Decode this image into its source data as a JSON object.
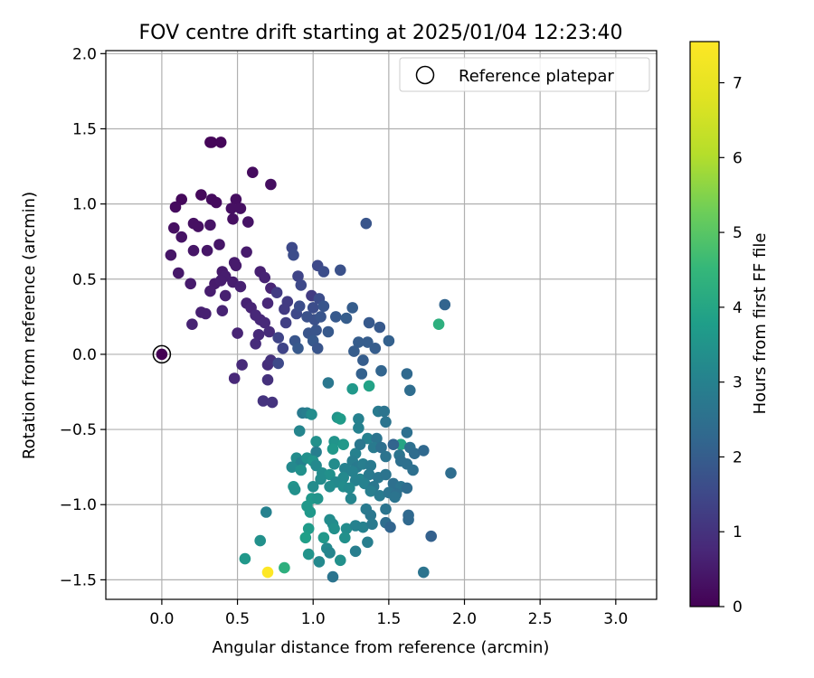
{
  "chart_data": {
    "type": "scatter",
    "title": "FOV centre drift starting at 2025/01/04 12:23:40",
    "xlabel": "Angular distance from reference (arcmin)",
    "ylabel": "Rotation from reference (arcmin)",
    "xlim": [
      -0.37,
      3.27
    ],
    "ylim": [
      -1.63,
      2.02
    ],
    "x_ticks": [
      0.0,
      0.5,
      1.0,
      1.5,
      2.0,
      2.5,
      3.0
    ],
    "x_tick_labels": [
      "0.0",
      "0.5",
      "1.0",
      "1.5",
      "2.0",
      "2.5",
      "3.0"
    ],
    "y_ticks": [
      -1.5,
      -1.0,
      -0.5,
      0.0,
      0.5,
      1.0,
      1.5,
      2.0
    ],
    "y_tick_labels": [
      "−1.5",
      "−1.0",
      "−0.5",
      "0.0",
      "0.5",
      "1.0",
      "1.5",
      "2.0"
    ],
    "grid": true,
    "legend": {
      "placement": "upper right",
      "entries": [
        "Reference platepar"
      ]
    },
    "reference": {
      "x": 0.0,
      "y": 0.0
    },
    "colorbar": {
      "label": "Hours from first FF file",
      "range": [
        0,
        7.55
      ],
      "ticks": [
        0,
        1,
        2,
        3,
        4,
        5,
        6,
        7
      ],
      "tick_labels": [
        "0",
        "1",
        "2",
        "3",
        "4",
        "5",
        "6",
        "7"
      ],
      "colormap": "viridis"
    },
    "points": [
      [
        0.0,
        0.0,
        0.0
      ],
      [
        0.32,
        1.41,
        0.1
      ],
      [
        0.33,
        1.41,
        0.1
      ],
      [
        0.39,
        1.41,
        0.1
      ],
      [
        0.6,
        1.21,
        0.2
      ],
      [
        0.72,
        1.13,
        0.25
      ],
      [
        0.13,
        1.03,
        0.15
      ],
      [
        0.26,
        1.06,
        0.15
      ],
      [
        0.33,
        1.03,
        0.2
      ],
      [
        0.36,
        1.01,
        0.2
      ],
      [
        0.49,
        1.03,
        0.25
      ],
      [
        0.09,
        0.98,
        0.2
      ],
      [
        0.46,
        0.97,
        0.3
      ],
      [
        0.52,
        0.97,
        0.3
      ],
      [
        0.21,
        0.87,
        0.3
      ],
      [
        0.24,
        0.85,
        0.3
      ],
      [
        0.32,
        0.86,
        0.35
      ],
      [
        0.47,
        0.9,
        0.3
      ],
      [
        0.57,
        0.88,
        0.35
      ],
      [
        0.08,
        0.84,
        0.3
      ],
      [
        0.13,
        0.78,
        0.35
      ],
      [
        0.38,
        0.73,
        0.4
      ],
      [
        0.21,
        0.69,
        0.4
      ],
      [
        0.3,
        0.69,
        0.4
      ],
      [
        0.06,
        0.66,
        0.4
      ],
      [
        0.56,
        0.68,
        0.5
      ],
      [
        0.48,
        0.61,
        0.5
      ],
      [
        0.49,
        0.59,
        0.5
      ],
      [
        0.11,
        0.54,
        0.45
      ],
      [
        0.4,
        0.55,
        0.5
      ],
      [
        0.42,
        0.52,
        0.55
      ],
      [
        0.65,
        0.55,
        0.6
      ],
      [
        0.68,
        0.51,
        0.65
      ],
      [
        0.19,
        0.47,
        0.5
      ],
      [
        0.35,
        0.47,
        0.5
      ],
      [
        0.39,
        0.49,
        0.55
      ],
      [
        0.47,
        0.48,
        0.55
      ],
      [
        0.52,
        0.45,
        0.6
      ],
      [
        0.72,
        0.44,
        0.7
      ],
      [
        0.32,
        0.42,
        0.55
      ],
      [
        0.42,
        0.39,
        0.6
      ],
      [
        0.56,
        0.34,
        0.65
      ],
      [
        0.59,
        0.31,
        0.7
      ],
      [
        0.7,
        0.34,
        0.75
      ],
      [
        0.26,
        0.28,
        0.6
      ],
      [
        0.29,
        0.27,
        0.6
      ],
      [
        0.4,
        0.29,
        0.65
      ],
      [
        0.2,
        0.2,
        0.65
      ],
      [
        0.62,
        0.26,
        0.75
      ],
      [
        0.65,
        0.23,
        0.75
      ],
      [
        0.68,
        0.21,
        0.8
      ],
      [
        0.5,
        0.14,
        0.7
      ],
      [
        0.64,
        0.13,
        0.8
      ],
      [
        0.71,
        0.15,
        0.85
      ],
      [
        0.62,
        0.07,
        0.85
      ],
      [
        0.48,
        -0.16,
        0.75
      ],
      [
        0.53,
        -0.07,
        0.8
      ],
      [
        0.7,
        -0.07,
        0.9
      ],
      [
        0.72,
        -0.04,
        0.95
      ],
      [
        0.7,
        -0.17,
        0.95
      ],
      [
        0.67,
        -0.31,
        1.0
      ],
      [
        0.73,
        -0.32,
        1.0
      ],
      [
        0.76,
        0.41,
        1.2
      ],
      [
        0.83,
        0.35,
        1.2
      ],
      [
        0.81,
        0.3,
        1.2
      ],
      [
        0.82,
        0.21,
        1.3
      ],
      [
        0.77,
        0.11,
        1.4
      ],
      [
        0.8,
        0.04,
        1.4
      ],
      [
        0.77,
        -0.06,
        1.5
      ],
      [
        0.86,
        0.71,
        1.5
      ],
      [
        0.87,
        0.66,
        1.6
      ],
      [
        0.9,
        0.52,
        1.4
      ],
      [
        0.92,
        0.46,
        1.5
      ],
      [
        0.99,
        0.39,
        1.2
      ],
      [
        1.03,
        0.59,
        1.5
      ],
      [
        1.07,
        0.55,
        1.6
      ],
      [
        1.18,
        0.56,
        1.7
      ],
      [
        0.89,
        0.27,
        1.5
      ],
      [
        0.91,
        0.32,
        1.6
      ],
      [
        0.96,
        0.25,
        1.7
      ],
      [
        1.0,
        0.31,
        1.6
      ],
      [
        1.04,
        0.37,
        1.6
      ],
      [
        1.07,
        0.32,
        1.8
      ],
      [
        1.01,
        0.23,
        1.7
      ],
      [
        1.05,
        0.25,
        1.8
      ],
      [
        0.97,
        0.14,
        1.8
      ],
      [
        1.02,
        0.16,
        1.8
      ],
      [
        0.88,
        0.09,
        1.8
      ],
      [
        0.9,
        0.04,
        1.9
      ],
      [
        1.0,
        0.09,
        1.9
      ],
      [
        1.03,
        0.04,
        1.8
      ],
      [
        1.1,
        0.15,
        1.9
      ],
      [
        1.15,
        0.25,
        1.9
      ],
      [
        1.22,
        0.24,
        2.0
      ],
      [
        1.26,
        0.31,
        2.0
      ],
      [
        1.35,
        0.87,
        1.8
      ],
      [
        1.37,
        0.21,
        1.9
      ],
      [
        1.44,
        0.18,
        1.9
      ],
      [
        1.3,
        0.08,
        2.0
      ],
      [
        1.36,
        0.08,
        2.0
      ],
      [
        1.27,
        0.02,
        2.0
      ],
      [
        1.33,
        -0.04,
        2.0
      ],
      [
        1.41,
        0.04,
        2.0
      ],
      [
        1.5,
        0.09,
        2.1
      ],
      [
        1.32,
        -0.13,
        2.1
      ],
      [
        1.45,
        -0.11,
        2.2
      ],
      [
        1.87,
        0.33,
        2.2
      ],
      [
        1.83,
        0.2,
        4.3
      ],
      [
        1.37,
        -0.21,
        3.9
      ],
      [
        1.26,
        -0.23,
        3.6
      ],
      [
        1.1,
        -0.19,
        2.7
      ],
      [
        1.62,
        -0.13,
        2.3
      ],
      [
        1.64,
        -0.24,
        2.4
      ],
      [
        0.93,
        -0.39,
        2.8
      ],
      [
        0.96,
        -0.39,
        2.9
      ],
      [
        0.99,
        -0.4,
        3.3
      ],
      [
        1.16,
        -0.42,
        3.5
      ],
      [
        1.18,
        -0.43,
        3.7
      ],
      [
        1.3,
        -0.43,
        3.0
      ],
      [
        1.43,
        -0.38,
        2.8
      ],
      [
        1.47,
        -0.38,
        2.6
      ],
      [
        1.48,
        -0.45,
        2.6
      ],
      [
        0.91,
        -0.51,
        3.1
      ],
      [
        1.3,
        -0.49,
        3.0
      ],
      [
        1.36,
        -0.56,
        3.0
      ],
      [
        1.42,
        -0.56,
        2.6
      ],
      [
        1.58,
        -0.6,
        4.0
      ],
      [
        1.62,
        -0.52,
        2.5
      ],
      [
        1.02,
        -0.58,
        3.4
      ],
      [
        1.14,
        -0.58,
        3.5
      ],
      [
        1.2,
        -0.6,
        3.6
      ],
      [
        1.02,
        -0.65,
        2.9
      ],
      [
        1.13,
        -0.63,
        3.6
      ],
      [
        1.28,
        -0.66,
        3.0
      ],
      [
        1.31,
        -0.6,
        2.7
      ],
      [
        1.4,
        -0.62,
        2.8
      ],
      [
        1.45,
        -0.62,
        2.5
      ],
      [
        1.53,
        -0.6,
        2.2
      ],
      [
        1.57,
        -0.67,
        2.6
      ],
      [
        1.64,
        -0.62,
        2.5
      ],
      [
        1.67,
        -0.66,
        2.4
      ],
      [
        1.73,
        -0.64,
        2.3
      ],
      [
        0.89,
        -0.69,
        3.3
      ],
      [
        0.92,
        -0.72,
        3.0
      ],
      [
        0.96,
        -0.69,
        3.4
      ],
      [
        1.0,
        -0.71,
        3.5
      ],
      [
        1.02,
        -0.74,
        3.2
      ],
      [
        1.14,
        -0.73,
        3.3
      ],
      [
        1.21,
        -0.76,
        3.0
      ],
      [
        1.26,
        -0.71,
        2.9
      ],
      [
        1.29,
        -0.75,
        2.8
      ],
      [
        1.33,
        -0.73,
        2.9
      ],
      [
        1.38,
        -0.74,
        2.8
      ],
      [
        1.48,
        -0.68,
        2.6
      ],
      [
        1.58,
        -0.71,
        2.5
      ],
      [
        1.62,
        -0.73,
        2.5
      ],
      [
        0.86,
        -0.75,
        3.2
      ],
      [
        0.92,
        -0.77,
        3.4
      ],
      [
        1.06,
        -0.79,
        3.3
      ],
      [
        1.11,
        -0.8,
        3.4
      ],
      [
        1.2,
        -0.82,
        3.2
      ],
      [
        1.26,
        -0.78,
        3.0
      ],
      [
        1.31,
        -0.83,
        3.1
      ],
      [
        1.37,
        -0.8,
        2.8
      ],
      [
        1.43,
        -0.82,
        2.7
      ],
      [
        1.48,
        -0.8,
        2.6
      ],
      [
        1.66,
        -0.77,
        2.5
      ],
      [
        1.91,
        -0.79,
        2.4
      ],
      [
        1.05,
        -0.83,
        3.3
      ],
      [
        1.15,
        -0.85,
        3.2
      ],
      [
        1.28,
        -0.84,
        3.0
      ],
      [
        1.34,
        -0.86,
        3.0
      ],
      [
        1.4,
        -0.88,
        2.7
      ],
      [
        1.53,
        -0.86,
        2.5
      ],
      [
        1.58,
        -0.88,
        2.6
      ],
      [
        1.62,
        -0.89,
        2.4
      ],
      [
        0.87,
        -0.88,
        3.5
      ],
      [
        0.88,
        -0.9,
        3.4
      ],
      [
        1.0,
        -0.88,
        3.3
      ],
      [
        1.11,
        -0.88,
        3.3
      ],
      [
        1.2,
        -0.88,
        3.3
      ],
      [
        1.24,
        -0.89,
        3.2
      ],
      [
        1.38,
        -0.91,
        2.9
      ],
      [
        1.44,
        -0.94,
        2.8
      ],
      [
        1.5,
        -0.92,
        2.6
      ],
      [
        1.55,
        -0.93,
        2.5
      ],
      [
        0.99,
        -0.96,
        3.6
      ],
      [
        1.03,
        -0.96,
        3.5
      ],
      [
        1.25,
        -0.96,
        3.1
      ],
      [
        1.54,
        -0.95,
        2.6
      ],
      [
        0.96,
        -1.01,
        3.6
      ],
      [
        1.35,
        -1.03,
        2.8
      ],
      [
        1.48,
        -1.03,
        2.6
      ],
      [
        0.69,
        -1.05,
        3.0
      ],
      [
        0.98,
        -1.05,
        3.6
      ],
      [
        1.38,
        -1.07,
        2.7
      ],
      [
        1.63,
        -1.07,
        2.3
      ],
      [
        1.63,
        -1.1,
        2.3
      ],
      [
        1.13,
        -1.13,
        3.3
      ],
      [
        1.11,
        -1.1,
        3.3
      ],
      [
        1.48,
        -1.12,
        2.4
      ],
      [
        1.51,
        -1.15,
        2.2
      ],
      [
        0.97,
        -1.16,
        3.7
      ],
      [
        1.14,
        -1.16,
        3.4
      ],
      [
        1.22,
        -1.16,
        3.3
      ],
      [
        1.28,
        -1.14,
        3.0
      ],
      [
        1.33,
        -1.15,
        3.0
      ],
      [
        1.39,
        -1.13,
        2.8
      ],
      [
        0.95,
        -1.22,
        3.8
      ],
      [
        1.78,
        -1.21,
        2.1
      ],
      [
        1.21,
        -1.22,
        3.4
      ],
      [
        0.65,
        -1.24,
        3.4
      ],
      [
        1.07,
        -1.22,
        3.6
      ],
      [
        1.36,
        -1.25,
        2.9
      ],
      [
        1.09,
        -1.29,
        3.2
      ],
      [
        1.28,
        -1.31,
        2.9
      ],
      [
        0.55,
        -1.36,
        3.6
      ],
      [
        0.97,
        -1.33,
        3.5
      ],
      [
        1.04,
        -1.38,
        3.2
      ],
      [
        1.11,
        -1.32,
        3.1
      ],
      [
        1.18,
        -1.37,
        3.4
      ],
      [
        1.13,
        -1.48,
        2.6
      ],
      [
        1.73,
        -1.45,
        2.6
      ],
      [
        0.81,
        -1.42,
        4.3
      ],
      [
        0.7,
        -1.45,
        7.55
      ]
    ]
  }
}
